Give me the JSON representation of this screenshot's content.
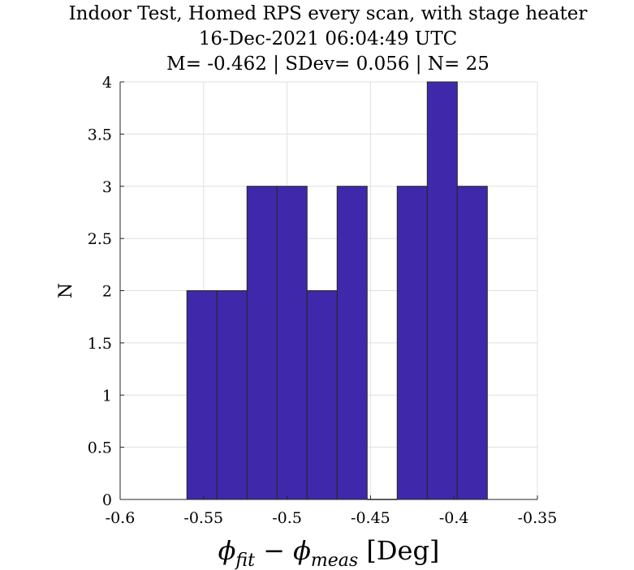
{
  "chart_data": {
    "type": "bar",
    "title_lines": [
      "Indoor Test, Homed RPS every scan, with stage heater",
      "16-Dec-2021 06:04:49 UTC",
      "M= -0.462 | SDev= 0.056 | N= 25"
    ],
    "xlabel": {
      "phi": "ϕ",
      "fit": "fit",
      "minus": " − ",
      "meas": "meas",
      "unit": " [Deg]"
    },
    "ylabel": "N",
    "xlim": [
      -0.6,
      -0.35
    ],
    "ylim": [
      0,
      4
    ],
    "x_ticks": [
      -0.6,
      -0.55,
      -0.5,
      -0.45,
      -0.4,
      -0.35
    ],
    "x_tick_labels": [
      "-0.6",
      "-0.55",
      "-0.5",
      "-0.45",
      "-0.4",
      "-0.35"
    ],
    "y_ticks": [
      0,
      0.5,
      1,
      1.5,
      2,
      2.5,
      3,
      3.5,
      4
    ],
    "y_tick_labels": [
      "0",
      "0.5",
      "1",
      "1.5",
      "2",
      "2.5",
      "3",
      "3.5",
      "4"
    ],
    "bin_edges": [
      -0.56,
      -0.542,
      -0.524,
      -0.506,
      -0.488,
      -0.47,
      -0.452,
      -0.434,
      -0.416,
      -0.398,
      -0.38
    ],
    "counts": [
      2,
      2,
      3,
      3,
      2,
      3,
      0,
      3,
      4,
      3
    ],
    "grid": true,
    "bar_color": "#3f29aa",
    "edge_color": "#262626"
  }
}
